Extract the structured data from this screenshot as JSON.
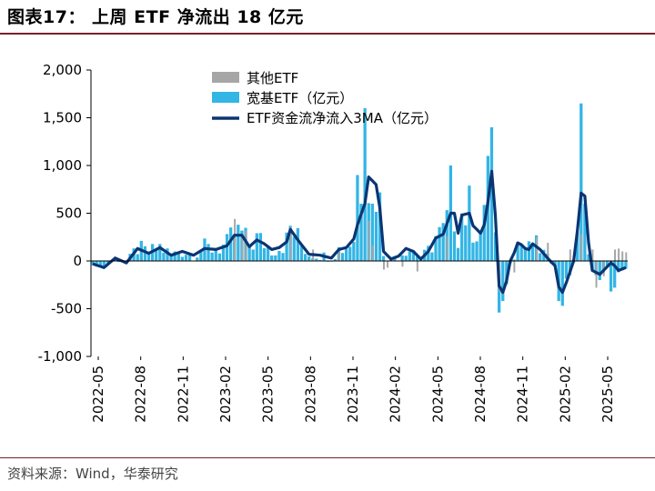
{
  "header": {
    "title": "图表17：  上周 ETF 净流出 18 亿元"
  },
  "footer": {
    "source": "资料来源：Wind，华泰研究"
  },
  "colors": {
    "other": "#a6a6a6",
    "broad": "#33b5e5",
    "ma": "#0b3573",
    "axis": "#000000",
    "frame": "#7a1f2b"
  },
  "chart_data": {
    "type": "bar",
    "ylim": [
      -1000,
      2000
    ],
    "yticks": [
      2000,
      1500,
      1000,
      500,
      0,
      -500,
      -1000
    ],
    "ytick_labels": [
      "2,000",
      "1,500",
      "1,000",
      "500",
      "0",
      "-500",
      "-1,000"
    ],
    "xtick_labels": [
      "2022-05",
      "2022-08",
      "2022-11",
      "2023-02",
      "2023-05",
      "2023-08",
      "2023-11",
      "2024-02",
      "2024-05",
      "2024-08",
      "2024-11",
      "2025-02",
      "2025-05"
    ],
    "legend_position": "top",
    "series": [
      {
        "name": "其他ETF",
        "type": "bar"
      },
      {
        "name": "宽基ETF（亿元）",
        "type": "bar"
      },
      {
        "name": "ETF资金流净流入3MA（亿元）",
        "type": "line"
      }
    ],
    "ma_keypoints": [
      [
        0,
        -30
      ],
      [
        3,
        -70
      ],
      [
        6,
        30
      ],
      [
        9,
        -20
      ],
      [
        12,
        130
      ],
      [
        15,
        80
      ],
      [
        18,
        140
      ],
      [
        21,
        60
      ],
      [
        24,
        100
      ],
      [
        27,
        60
      ],
      [
        30,
        130
      ],
      [
        33,
        120
      ],
      [
        36,
        160
      ],
      [
        38,
        270
      ],
      [
        40,
        270
      ],
      [
        42,
        150
      ],
      [
        44,
        220
      ],
      [
        46,
        180
      ],
      [
        48,
        120
      ],
      [
        50,
        140
      ],
      [
        52,
        200
      ],
      [
        53,
        330
      ],
      [
        55,
        220
      ],
      [
        58,
        70
      ],
      [
        61,
        60
      ],
      [
        64,
        30
      ],
      [
        66,
        120
      ],
      [
        68,
        140
      ],
      [
        70,
        230
      ],
      [
        71,
        380
      ],
      [
        73,
        600
      ],
      [
        74,
        880
      ],
      [
        76,
        800
      ],
      [
        77,
        560
      ],
      [
        78,
        100
      ],
      [
        80,
        20
      ],
      [
        82,
        50
      ],
      [
        84,
        130
      ],
      [
        86,
        100
      ],
      [
        88,
        20
      ],
      [
        90,
        100
      ],
      [
        92,
        240
      ],
      [
        94,
        280
      ],
      [
        96,
        500
      ],
      [
        97,
        500
      ],
      [
        98,
        290
      ],
      [
        99,
        480
      ],
      [
        101,
        500
      ],
      [
        102,
        370
      ],
      [
        104,
        290
      ],
      [
        105,
        380
      ],
      [
        106,
        620
      ],
      [
        107,
        940
      ],
      [
        108,
        480
      ],
      [
        109,
        -260
      ],
      [
        110,
        -330
      ],
      [
        111,
        -210
      ],
      [
        112,
        0
      ],
      [
        113,
        80
      ],
      [
        114,
        190
      ],
      [
        115,
        170
      ],
      [
        116,
        130
      ],
      [
        117,
        120
      ],
      [
        118,
        180
      ],
      [
        120,
        120
      ],
      [
        122,
        30
      ],
      [
        124,
        -50
      ],
      [
        125,
        -270
      ],
      [
        126,
        -330
      ],
      [
        127,
        -230
      ],
      [
        129,
        0
      ],
      [
        130,
        320
      ],
      [
        131,
        710
      ],
      [
        132,
        680
      ],
      [
        133,
        190
      ],
      [
        134,
        -100
      ],
      [
        136,
        -140
      ],
      [
        138,
        -60
      ],
      [
        139,
        -20
      ],
      [
        140,
        -50
      ],
      [
        141,
        -100
      ],
      [
        143,
        -70
      ]
    ],
    "other_etf_bars": [
      [
        38,
        440
      ],
      [
        40,
        280
      ],
      [
        41,
        320
      ],
      [
        53,
        360
      ],
      [
        59,
        120
      ],
      [
        66,
        120
      ],
      [
        74,
        420
      ],
      [
        75,
        160
      ],
      [
        78,
        -90
      ],
      [
        79,
        -70
      ],
      [
        83,
        -60
      ],
      [
        87,
        -110
      ],
      [
        95,
        260
      ],
      [
        109,
        -320
      ],
      [
        113,
        -120
      ],
      [
        119,
        250
      ],
      [
        122,
        190
      ],
      [
        128,
        120
      ],
      [
        131,
        280
      ],
      [
        134,
        120
      ],
      [
        135,
        -280
      ],
      [
        137,
        -160
      ],
      [
        140,
        120
      ],
      [
        141,
        130
      ],
      [
        142,
        100
      ],
      [
        143,
        90
      ]
    ],
    "broad_bars_note": "weekly broad-based ETF net flow bars roughly tracking the 3MA line with spikes near 1,600 (2024-01/02), 1,400 (2024-09/10), 1,650 (2025-04)",
    "broad_bar_peaks": [
      [
        73,
        1600
      ],
      [
        71,
        900
      ],
      [
        72,
        600
      ],
      [
        75,
        600
      ],
      [
        96,
        1000
      ],
      [
        106,
        1100
      ],
      [
        107,
        1400
      ],
      [
        108,
        300
      ],
      [
        109,
        -540
      ],
      [
        110,
        -420
      ],
      [
        125,
        -420
      ],
      [
        126,
        -470
      ],
      [
        131,
        1650
      ],
      [
        132,
        600
      ],
      [
        136,
        -200
      ],
      [
        139,
        -320
      ],
      [
        140,
        -280
      ]
    ]
  }
}
